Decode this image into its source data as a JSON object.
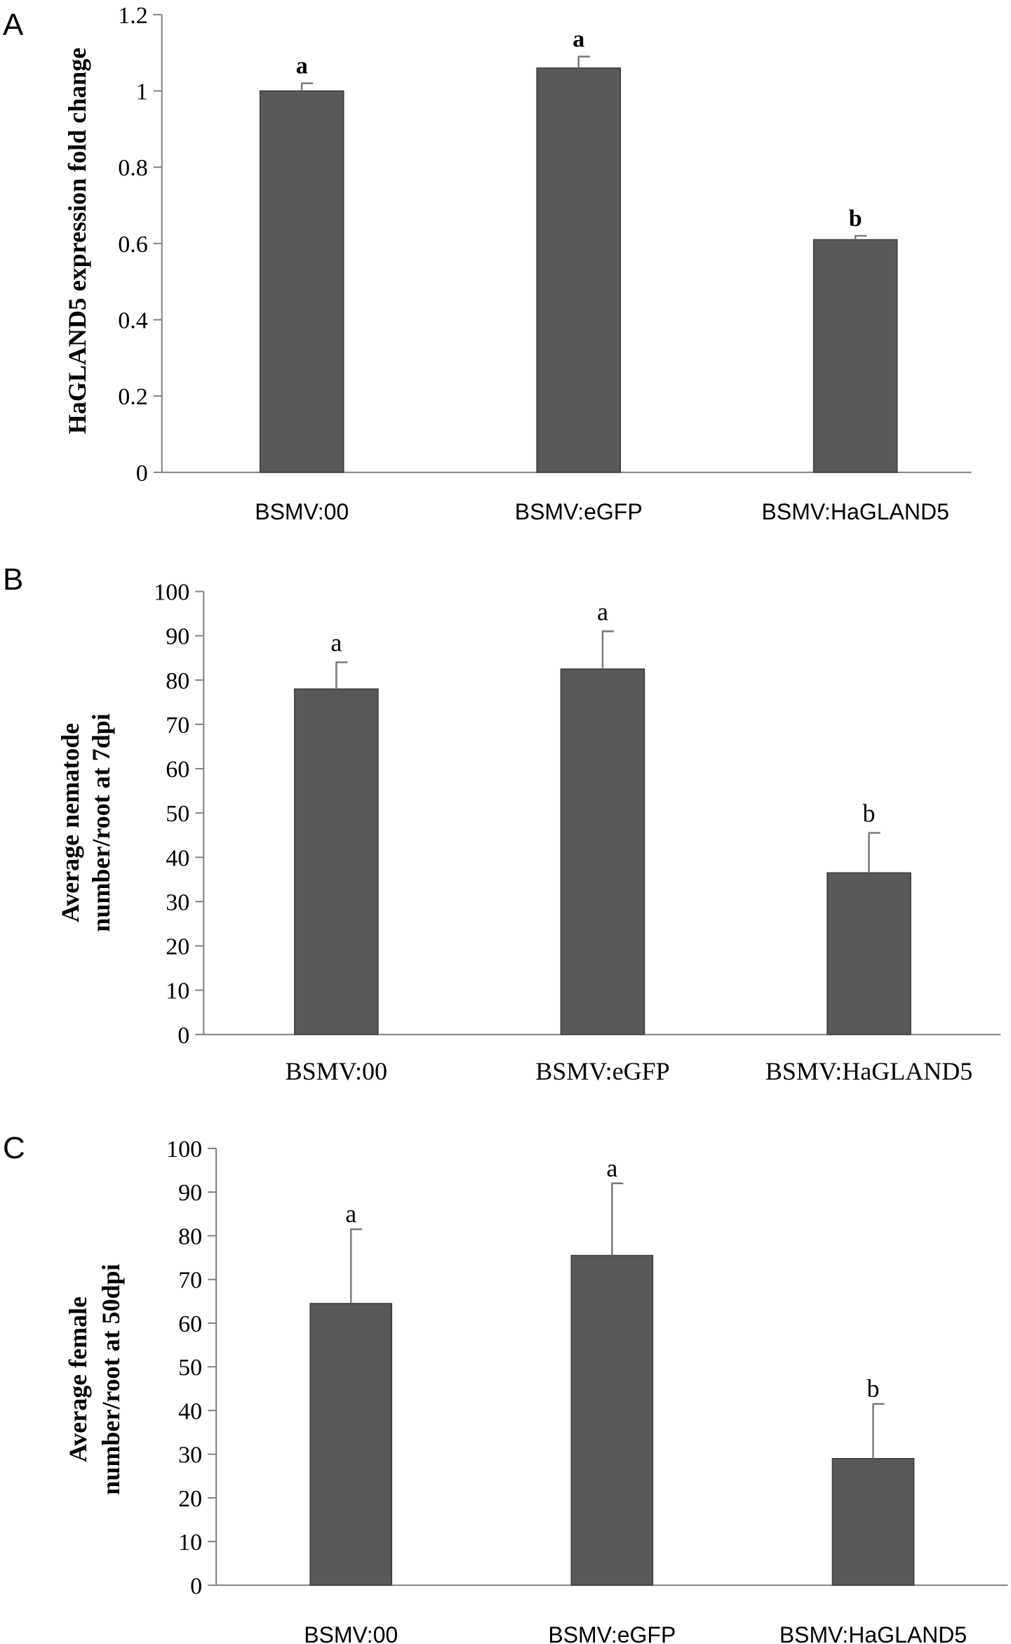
{
  "chart_data": [
    {
      "panel": "A",
      "type": "bar",
      "categories": [
        "BSMV:00",
        "BSMV:eGFP",
        "BSMV:HaGLAND5"
      ],
      "values": [
        1.0,
        1.06,
        0.61
      ],
      "errors": [
        0.02,
        0.03,
        0.01
      ],
      "significance": [
        "a",
        "a",
        "b"
      ],
      "ylabel": "HaGLAND5 expression fold change",
      "xlabel": "",
      "ylim": [
        0,
        1.2
      ],
      "yticks": [
        "0",
        "0.2",
        "0.4",
        "0.6",
        "0.8",
        "1",
        "1.2"
      ],
      "bar_color": "#595959"
    },
    {
      "panel": "B",
      "type": "bar",
      "categories": [
        "BSMV:00",
        "BSMV:eGFP",
        "BSMV:HaGLAND5"
      ],
      "values": [
        78,
        82.5,
        36.5
      ],
      "errors": [
        6,
        8.5,
        9
      ],
      "significance": [
        "a",
        "a",
        "b"
      ],
      "ylabel_lines": [
        "Average nematode",
        "number/root at 7dpi"
      ],
      "xlabel": "",
      "ylim": [
        0,
        100
      ],
      "yticks": [
        "0",
        "10",
        "20",
        "30",
        "40",
        "50",
        "60",
        "70",
        "80",
        "90",
        "100"
      ],
      "bar_color": "#595959"
    },
    {
      "panel": "C",
      "type": "bar",
      "categories": [
        "BSMV:00",
        "BSMV:eGFP",
        "BSMV:HaGLAND5"
      ],
      "values": [
        64.5,
        75.5,
        29
      ],
      "errors": [
        17,
        16.5,
        12.5
      ],
      "significance": [
        "a",
        "a",
        "b"
      ],
      "ylabel_lines": [
        "Average female",
        "number/root at 50dpi"
      ],
      "xlabel": "",
      "ylim": [
        0,
        100
      ],
      "yticks": [
        "0",
        "10",
        "20",
        "30",
        "40",
        "50",
        "60",
        "70",
        "80",
        "90",
        "100"
      ],
      "bar_color": "#595959"
    }
  ]
}
